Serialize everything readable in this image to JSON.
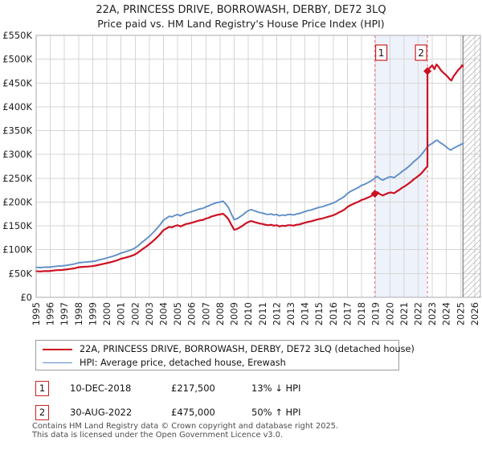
{
  "chart_data": {
    "type": "line",
    "title": "22A, PRINCESS DRIVE, BORROWASH, DERBY, DE72 3LQ",
    "subtitle": "Price paid vs. HM Land Registry's House Price Index (HPI)",
    "x_axis": {
      "min": 1995,
      "max": 2026.4,
      "ticks": [
        1995,
        1996,
        1997,
        1998,
        1999,
        2000,
        2001,
        2002,
        2003,
        2004,
        2005,
        2006,
        2007,
        2008,
        2009,
        2010,
        2011,
        2012,
        2013,
        2014,
        2015,
        2016,
        2017,
        2018,
        2019,
        2020,
        2021,
        2022,
        2023,
        2024,
        2025,
        2026
      ]
    },
    "y_axis": {
      "min": 0,
      "max": 550,
      "tick_step": 50,
      "unit": "GBP thousands",
      "tick_labels": [
        "£0",
        "£50K",
        "£100K",
        "£150K",
        "£200K",
        "£250K",
        "£300K",
        "£350K",
        "£400K",
        "£450K",
        "£500K",
        "£550K"
      ]
    },
    "grid": true,
    "legend_position": "bottom",
    "highlight_band": {
      "from": 2018.94,
      "to": 2022.66
    },
    "future_hatch_from": 2025.17,
    "colors": {
      "property": "#cc1122",
      "hpi": "#5f8fc7",
      "dashed_marker": "#ef7070",
      "band": "#eef2fa",
      "grid": "#d6d6d6",
      "frame": "#a9a9b2",
      "hatch_line": "#c4c4c4",
      "today_line": "#8a8a8a",
      "flag_border": "#cc2222"
    },
    "series": [
      {
        "name": "22A, PRINCESS DRIVE, BORROWASH, DERBY, DE72 3LQ (detached house)",
        "color": "#cc1122",
        "width": 2.2,
        "points": [
          [
            1995.0,
            54.8
          ],
          [
            1995.3,
            54.4
          ],
          [
            1995.6,
            55.2
          ],
          [
            1995.9,
            55.0
          ],
          [
            1996.2,
            56.1
          ],
          [
            1996.5,
            57.0
          ],
          [
            1996.8,
            57.4
          ],
          [
            1997.1,
            58.3
          ],
          [
            1997.4,
            59.6
          ],
          [
            1997.7,
            60.9
          ],
          [
            1998.0,
            63.1
          ],
          [
            1998.3,
            64.0
          ],
          [
            1998.6,
            64.4
          ],
          [
            1998.9,
            65.3
          ],
          [
            1999.2,
            66.6
          ],
          [
            1999.5,
            68.7
          ],
          [
            1999.8,
            70.5
          ],
          [
            2000.1,
            72.6
          ],
          [
            2000.4,
            74.8
          ],
          [
            2000.7,
            77.4
          ],
          [
            2001.0,
            80.9
          ],
          [
            2001.3,
            83.1
          ],
          [
            2001.6,
            85.7
          ],
          [
            2001.9,
            88.7
          ],
          [
            2002.2,
            94.0
          ],
          [
            2002.5,
            100.9
          ],
          [
            2002.8,
            107.0
          ],
          [
            2003.1,
            114.0
          ],
          [
            2003.4,
            121.8
          ],
          [
            2003.7,
            130.5
          ],
          [
            2004.0,
            141.0
          ],
          [
            2004.2,
            144.4
          ],
          [
            2004.4,
            147.9
          ],
          [
            2004.6,
            147.0
          ],
          [
            2004.8,
            149.6
          ],
          [
            2005.0,
            151.4
          ],
          [
            2005.2,
            148.8
          ],
          [
            2005.4,
            151.4
          ],
          [
            2005.6,
            154.0
          ],
          [
            2005.8,
            154.9
          ],
          [
            2006.0,
            156.6
          ],
          [
            2006.3,
            159.2
          ],
          [
            2006.6,
            161.8
          ],
          [
            2006.8,
            162.7
          ],
          [
            2007.0,
            165.3
          ],
          [
            2007.2,
            167.0
          ],
          [
            2007.4,
            169.7
          ],
          [
            2007.6,
            171.4
          ],
          [
            2007.8,
            173.1
          ],
          [
            2008.0,
            174.0
          ],
          [
            2008.2,
            175.7
          ],
          [
            2008.4,
            170.5
          ],
          [
            2008.6,
            163.6
          ],
          [
            2008.8,
            152.3
          ],
          [
            2009.0,
            141.8
          ],
          [
            2009.2,
            143.6
          ],
          [
            2009.4,
            147.0
          ],
          [
            2009.6,
            150.5
          ],
          [
            2009.8,
            154.9
          ],
          [
            2010.0,
            158.3
          ],
          [
            2010.2,
            160.1
          ],
          [
            2010.4,
            158.3
          ],
          [
            2010.6,
            156.6
          ],
          [
            2010.8,
            154.9
          ],
          [
            2011.0,
            154.0
          ],
          [
            2011.2,
            152.3
          ],
          [
            2011.4,
            151.4
          ],
          [
            2011.6,
            152.3
          ],
          [
            2011.8,
            150.5
          ],
          [
            2012.0,
            151.4
          ],
          [
            2012.2,
            148.8
          ],
          [
            2012.4,
            150.5
          ],
          [
            2012.6,
            149.6
          ],
          [
            2012.8,
            151.4
          ],
          [
            2013.0,
            151.4
          ],
          [
            2013.2,
            150.5
          ],
          [
            2013.4,
            152.3
          ],
          [
            2013.6,
            153.1
          ],
          [
            2013.8,
            154.9
          ],
          [
            2014.0,
            156.6
          ],
          [
            2014.2,
            158.3
          ],
          [
            2014.4,
            159.2
          ],
          [
            2014.6,
            161.0
          ],
          [
            2014.8,
            162.7
          ],
          [
            2015.0,
            164.4
          ],
          [
            2015.2,
            165.3
          ],
          [
            2015.4,
            167.0
          ],
          [
            2015.6,
            168.8
          ],
          [
            2015.8,
            170.5
          ],
          [
            2016.0,
            172.3
          ],
          [
            2016.2,
            174.9
          ],
          [
            2016.4,
            178.4
          ],
          [
            2016.6,
            181.0
          ],
          [
            2016.8,
            184.4
          ],
          [
            2017.0,
            189.7
          ],
          [
            2017.2,
            193.1
          ],
          [
            2017.4,
            195.8
          ],
          [
            2017.6,
            198.4
          ],
          [
            2017.8,
            201.0
          ],
          [
            2018.0,
            204.5
          ],
          [
            2018.2,
            206.2
          ],
          [
            2018.4,
            208.8
          ],
          [
            2018.6,
            211.4
          ],
          [
            2018.8,
            214.9
          ],
          [
            2018.94,
            217.5
          ],
          [
            2019.1,
            221.0
          ],
          [
            2019.3,
            216.6
          ],
          [
            2019.5,
            214.0
          ],
          [
            2019.7,
            216.6
          ],
          [
            2019.9,
            219.2
          ],
          [
            2020.1,
            220.1
          ],
          [
            2020.3,
            218.4
          ],
          [
            2020.5,
            222.7
          ],
          [
            2020.7,
            226.2
          ],
          [
            2020.9,
            230.6
          ],
          [
            2021.1,
            234.0
          ],
          [
            2021.3,
            238.4
          ],
          [
            2021.5,
            242.7
          ],
          [
            2021.7,
            248.0
          ],
          [
            2021.9,
            252.3
          ],
          [
            2022.1,
            256.7
          ],
          [
            2022.3,
            262.7
          ],
          [
            2022.5,
            269.7
          ],
          [
            2022.66,
            275.0
          ],
          [
            2022.66,
            475.0
          ],
          [
            2022.8,
            481.0
          ],
          [
            2023.0,
            487.0
          ],
          [
            2023.15,
            479.0
          ],
          [
            2023.3,
            489.0
          ],
          [
            2023.45,
            484.0
          ],
          [
            2023.6,
            477.0
          ],
          [
            2023.8,
            471.0
          ],
          [
            2024.0,
            466.0
          ],
          [
            2024.2,
            459.0
          ],
          [
            2024.35,
            455.0
          ],
          [
            2024.5,
            464.0
          ],
          [
            2024.7,
            472.0
          ],
          [
            2024.85,
            478.0
          ],
          [
            2025.0,
            482.0
          ],
          [
            2025.1,
            487.0
          ],
          [
            2025.17,
            485.0
          ]
        ]
      },
      {
        "name": "HPI: Average price, detached house, Erewash",
        "color": "#5f8fc7",
        "width": 1.9,
        "points": [
          [
            1995.0,
            63
          ],
          [
            1995.3,
            62.5
          ],
          [
            1995.6,
            63.5
          ],
          [
            1995.9,
            63.2
          ],
          [
            1996.2,
            64.5
          ],
          [
            1996.5,
            65.5
          ],
          [
            1996.8,
            66
          ],
          [
            1997.1,
            67
          ],
          [
            1997.4,
            68.5
          ],
          [
            1997.7,
            70
          ],
          [
            1998.0,
            72.5
          ],
          [
            1998.3,
            73.5
          ],
          [
            1998.6,
            74
          ],
          [
            1998.9,
            75
          ],
          [
            1999.2,
            76.5
          ],
          [
            1999.5,
            79
          ],
          [
            1999.8,
            81
          ],
          [
            2000.1,
            83.5
          ],
          [
            2000.4,
            86
          ],
          [
            2000.7,
            89
          ],
          [
            2001.0,
            93
          ],
          [
            2001.3,
            95.5
          ],
          [
            2001.6,
            98.5
          ],
          [
            2001.9,
            102
          ],
          [
            2002.2,
            108
          ],
          [
            2002.5,
            116
          ],
          [
            2002.8,
            123
          ],
          [
            2003.1,
            131
          ],
          [
            2003.4,
            140
          ],
          [
            2003.7,
            150
          ],
          [
            2004.0,
            162
          ],
          [
            2004.2,
            166
          ],
          [
            2004.4,
            170
          ],
          [
            2004.6,
            169
          ],
          [
            2004.8,
            172
          ],
          [
            2005.0,
            174
          ],
          [
            2005.2,
            171
          ],
          [
            2005.4,
            174
          ],
          [
            2005.6,
            177
          ],
          [
            2005.8,
            178
          ],
          [
            2006.0,
            180
          ],
          [
            2006.3,
            183
          ],
          [
            2006.6,
            186
          ],
          [
            2006.8,
            187
          ],
          [
            2007.0,
            190
          ],
          [
            2007.2,
            192
          ],
          [
            2007.4,
            195
          ],
          [
            2007.6,
            197
          ],
          [
            2007.8,
            199
          ],
          [
            2008.0,
            200
          ],
          [
            2008.2,
            202
          ],
          [
            2008.4,
            196
          ],
          [
            2008.6,
            188
          ],
          [
            2008.8,
            175
          ],
          [
            2009.0,
            163
          ],
          [
            2009.2,
            165
          ],
          [
            2009.4,
            169
          ],
          [
            2009.6,
            173
          ],
          [
            2009.8,
            178
          ],
          [
            2010.0,
            182
          ],
          [
            2010.2,
            184
          ],
          [
            2010.4,
            182
          ],
          [
            2010.6,
            180
          ],
          [
            2010.8,
            178
          ],
          [
            2011.0,
            177
          ],
          [
            2011.2,
            175
          ],
          [
            2011.4,
            174
          ],
          [
            2011.6,
            175
          ],
          [
            2011.8,
            173
          ],
          [
            2012.0,
            174
          ],
          [
            2012.2,
            171
          ],
          [
            2012.4,
            173
          ],
          [
            2012.6,
            172
          ],
          [
            2012.8,
            174
          ],
          [
            2013.0,
            174
          ],
          [
            2013.2,
            173
          ],
          [
            2013.4,
            175
          ],
          [
            2013.6,
            176
          ],
          [
            2013.8,
            178
          ],
          [
            2014.0,
            180
          ],
          [
            2014.2,
            182
          ],
          [
            2014.4,
            183
          ],
          [
            2014.6,
            185
          ],
          [
            2014.8,
            187
          ],
          [
            2015.0,
            189
          ],
          [
            2015.2,
            190
          ],
          [
            2015.4,
            192
          ],
          [
            2015.6,
            194
          ],
          [
            2015.8,
            196
          ],
          [
            2016.0,
            198
          ],
          [
            2016.2,
            201
          ],
          [
            2016.4,
            205
          ],
          [
            2016.6,
            208
          ],
          [
            2016.8,
            212
          ],
          [
            2017.0,
            218
          ],
          [
            2017.2,
            222
          ],
          [
            2017.4,
            225
          ],
          [
            2017.6,
            228
          ],
          [
            2017.8,
            231
          ],
          [
            2018.0,
            235
          ],
          [
            2018.2,
            237
          ],
          [
            2018.4,
            240
          ],
          [
            2018.6,
            243
          ],
          [
            2018.8,
            247
          ],
          [
            2018.94,
            250
          ],
          [
            2019.1,
            254
          ],
          [
            2019.3,
            249
          ],
          [
            2019.5,
            246
          ],
          [
            2019.7,
            249
          ],
          [
            2019.9,
            252
          ],
          [
            2020.1,
            253
          ],
          [
            2020.3,
            251
          ],
          [
            2020.5,
            256
          ],
          [
            2020.7,
            260
          ],
          [
            2020.9,
            265
          ],
          [
            2021.1,
            269
          ],
          [
            2021.3,
            274
          ],
          [
            2021.5,
            279
          ],
          [
            2021.7,
            285
          ],
          [
            2021.9,
            290
          ],
          [
            2022.1,
            295
          ],
          [
            2022.3,
            302
          ],
          [
            2022.5,
            310
          ],
          [
            2022.66,
            316
          ],
          [
            2022.8,
            320
          ],
          [
            2023.0,
            323
          ],
          [
            2023.2,
            328
          ],
          [
            2023.35,
            330
          ],
          [
            2023.5,
            326
          ],
          [
            2023.7,
            322
          ],
          [
            2023.9,
            318
          ],
          [
            2024.1,
            313
          ],
          [
            2024.3,
            309
          ],
          [
            2024.5,
            313
          ],
          [
            2024.7,
            316
          ],
          [
            2024.9,
            319
          ],
          [
            2025.05,
            321
          ],
          [
            2025.17,
            323
          ]
        ]
      }
    ],
    "sales": [
      {
        "n": "1",
        "date": "10-DEC-2018",
        "price": "£217,500",
        "pct": "13% ↓ HPI",
        "year": 2018.94,
        "value_k": 217.5
      },
      {
        "n": "2",
        "date": "30-AUG-2022",
        "price": "£475,000",
        "pct": "50% ↑ HPI",
        "year": 2022.66,
        "value_k": 475
      }
    ]
  },
  "footer": {
    "line1": "Contains HM Land Registry data © Crown copyright and database right 2025.",
    "line2": "This data is licensed under the Open Government Licence v3.0."
  }
}
